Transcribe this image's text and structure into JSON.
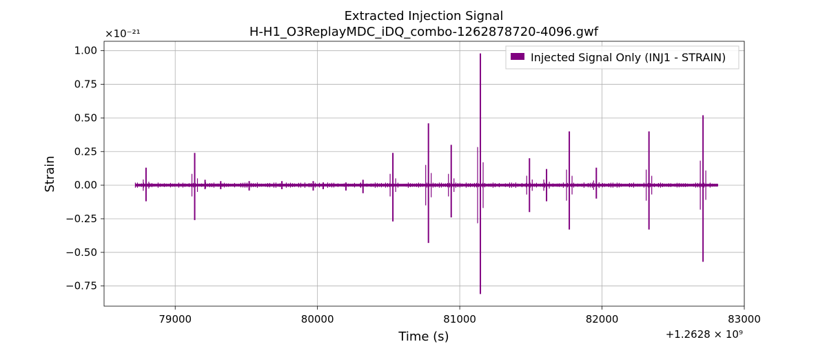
{
  "chart_data": {
    "type": "line",
    "title": "Extracted Injection Signal",
    "subtitle": "H-H1_O3ReplayMDC_iDQ_combo-1262878720-4096.gwf",
    "xlabel": "Time (s)",
    "ylabel": "Strain",
    "x_offset_label": "+1.2628 × 10⁹",
    "y_multiplier_label": "×10⁻²¹",
    "xlim": [
      78500,
      83000
    ],
    "ylim": [
      -0.9,
      1.07
    ],
    "x_ticks": [
      79000,
      80000,
      81000,
      82000,
      83000
    ],
    "y_ticks": [
      -0.75,
      -0.5,
      -0.25,
      0.0,
      0.25,
      0.5,
      0.75,
      1.0
    ],
    "x_tick_labels": [
      "79000",
      "80000",
      "81000",
      "82000",
      "83000"
    ],
    "y_tick_labels": [
      "−0.75",
      "−0.50",
      "−0.25",
      "0.00",
      "0.25",
      "0.50",
      "0.75",
      "1.00"
    ],
    "grid": true,
    "legend_position": "top-right",
    "series": [
      {
        "name": "Injected Signal Only (INJ1 - STRAIN)",
        "color": "#800080",
        "x_range": [
          78720,
          82816
        ],
        "baseline_amplitude": 0.01,
        "bursts": [
          {
            "x": 78795,
            "max": 0.13,
            "min": -0.12
          },
          {
            "x": 79137,
            "max": 0.24,
            "min": -0.26
          },
          {
            "x": 79210,
            "max": 0.04,
            "min": -0.03
          },
          {
            "x": 79320,
            "max": 0.03,
            "min": -0.03
          },
          {
            "x": 79520,
            "max": 0.03,
            "min": -0.04
          },
          {
            "x": 79750,
            "max": 0.03,
            "min": -0.03
          },
          {
            "x": 79970,
            "max": 0.03,
            "min": -0.04
          },
          {
            "x": 80040,
            "max": 0.02,
            "min": -0.03
          },
          {
            "x": 80200,
            "max": 0.02,
            "min": -0.04
          },
          {
            "x": 80320,
            "max": 0.04,
            "min": -0.06
          },
          {
            "x": 80530,
            "max": 0.24,
            "min": -0.27
          },
          {
            "x": 80780,
            "max": 0.46,
            "min": -0.43
          },
          {
            "x": 80940,
            "max": 0.3,
            "min": -0.24
          },
          {
            "x": 81145,
            "max": 0.98,
            "min": -0.81
          },
          {
            "x": 81490,
            "max": 0.2,
            "min": -0.2
          },
          {
            "x": 81610,
            "max": 0.12,
            "min": -0.12
          },
          {
            "x": 81770,
            "max": 0.4,
            "min": -0.33
          },
          {
            "x": 81960,
            "max": 0.13,
            "min": -0.1
          },
          {
            "x": 82330,
            "max": 0.4,
            "min": -0.33
          },
          {
            "x": 82710,
            "max": 0.52,
            "min": -0.57
          }
        ]
      }
    ]
  }
}
